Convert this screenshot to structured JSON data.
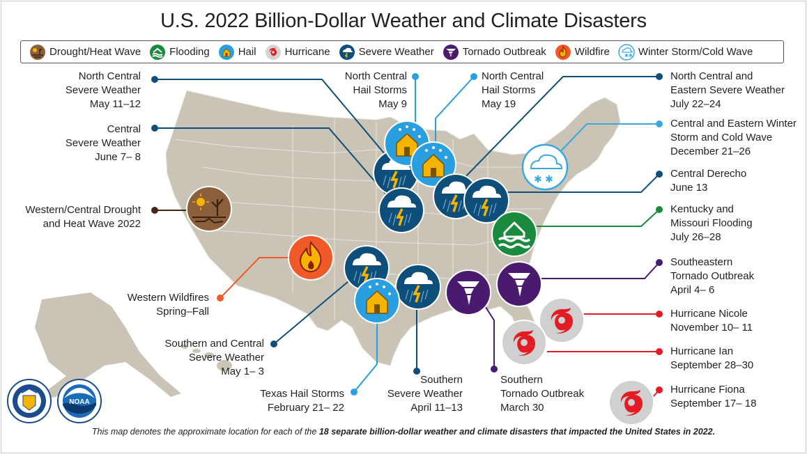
{
  "title": "U.S. 2022 Billion-Dollar Weather and Climate Disasters",
  "legend": [
    {
      "label": "Drought/Heat Wave",
      "icon": "drought-icon",
      "color": "#8b5e3c"
    },
    {
      "label": "Flooding",
      "icon": "flood-icon",
      "color": "#1a8a3c"
    },
    {
      "label": "Hail",
      "icon": "hail-icon",
      "color": "#2a9fe0"
    },
    {
      "label": "Hurricane",
      "icon": "hurricane-icon",
      "color": "#e31b23"
    },
    {
      "label": "Severe Weather",
      "icon": "severe-weather-icon",
      "color": "#0d4f7a"
    },
    {
      "label": "Tornado Outbreak",
      "icon": "tornado-icon",
      "color": "#4a1a6e"
    },
    {
      "label": "Wildfire",
      "icon": "wildfire-icon",
      "color": "#f05a28"
    },
    {
      "label": "Winter Storm/Cold Wave",
      "icon": "winter-storm-icon",
      "color": "#3aa8df"
    }
  ],
  "events": {
    "nc_severe_may": {
      "name1": "North Central",
      "name2": "Severe Weather",
      "dates": "May 11–12"
    },
    "central_severe": {
      "name1": "Central",
      "name2": "Severe Weather",
      "dates": "June 7– 8"
    },
    "drought": {
      "name1": "Western/Central Drought",
      "name2": "and Heat Wave 2022"
    },
    "wildfires": {
      "name1": "Western Wildfires",
      "name2": "Spring–Fall"
    },
    "sc_severe": {
      "name1": "Southern and Central",
      "name2": "Severe Weather",
      "dates": "May 1– 3"
    },
    "texas_hail": {
      "name1": "Texas Hail Storms",
      "dates": "February 21– 22"
    },
    "southern_severe": {
      "name1": "Southern",
      "name2": "Severe Weather",
      "dates": "April 11–13"
    },
    "southern_tornado": {
      "name1": "Southern",
      "name2": "Tornado Outbreak",
      "dates": "March 30"
    },
    "nc_hail_may9": {
      "name1": "North Central",
      "name2": "Hail Storms",
      "dates": "May 9"
    },
    "nc_hail_may19": {
      "name1": "North Central",
      "name2": "Hail Storms",
      "dates": "May 19"
    },
    "nce_severe": {
      "name1": "North Central and",
      "name2": "Eastern Severe Weather",
      "dates": "July 22–24"
    },
    "winter_storm": {
      "name1": "Central and Eastern Winter",
      "name2": "Storm and Cold Wave",
      "dates": "December 21–26"
    },
    "derecho": {
      "name1": "Central Derecho",
      "dates": "June 13"
    },
    "ky_flood": {
      "name1": "Kentucky and",
      "name2": "Missouri Flooding",
      "dates": "July 26–28"
    },
    "se_tornado": {
      "name1": "Southeastern",
      "name2": "Tornado Outbreak",
      "dates": "April 4– 6"
    },
    "nicole": {
      "name1": "Hurricane Nicole",
      "dates": "November 10– 11"
    },
    "ian": {
      "name1": "Hurricane Ian",
      "dates": "September 28–30"
    },
    "fiona": {
      "name1": "Hurricane Fiona",
      "dates": "September 17– 18"
    }
  },
  "seals": {
    "commerce": "DEPARTMENT OF COMMERCE · UNITED STATES OF AMERICA",
    "noaa": "NOAA"
  },
  "footer": {
    "prefix": "This map denotes the approximate location for each of the ",
    "bold": "18 separate billion-dollar weather and climate disasters that impacted the United States in 2022."
  }
}
